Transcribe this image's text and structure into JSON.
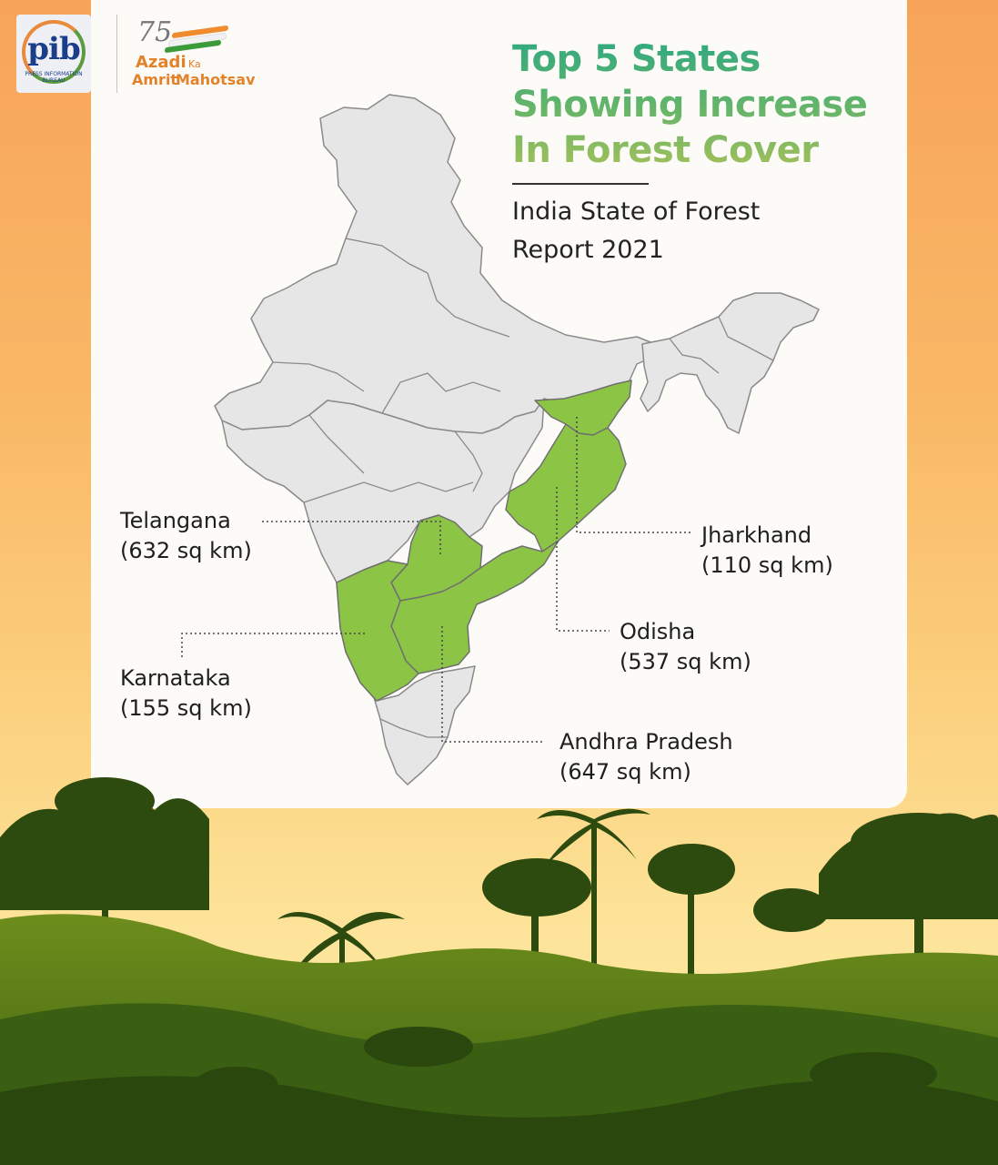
{
  "header": {
    "pib_logo_text": "pib",
    "pib_logo_subtext": "PRESS INFORMATION BUREAU",
    "azadi_number": "75",
    "azadi_line1": "Azadi",
    "azadi_ka": "Ka",
    "azadi_line2_a": "Amrit",
    "azadi_line2_b": "Mahotsav"
  },
  "title_lines": [
    "Top 5 States",
    "Showing Increase",
    "In Forest Cover"
  ],
  "subtitle_lines": [
    "India State of Forest",
    "Report 2021"
  ],
  "colors": {
    "highlight_state": "#8cc545",
    "base_state": "#e6e6e6",
    "state_border": "#8a8a8a",
    "title_gradient_top": "#2fa882",
    "title_gradient_bottom": "#a4c05a",
    "forest_dark": "#2d4a0f",
    "forest_mid": "#4a7317"
  },
  "states": [
    {
      "name": "Telangana",
      "value": "(632 sq km)"
    },
    {
      "name": "Karnataka",
      "value": "(155 sq km)"
    },
    {
      "name": "Jharkhand",
      "value": "(110 sq km)"
    },
    {
      "name": "Odisha",
      "value": "(537 sq km)"
    },
    {
      "name": "Andhra Pradesh",
      "value": "(647 sq km)"
    }
  ]
}
